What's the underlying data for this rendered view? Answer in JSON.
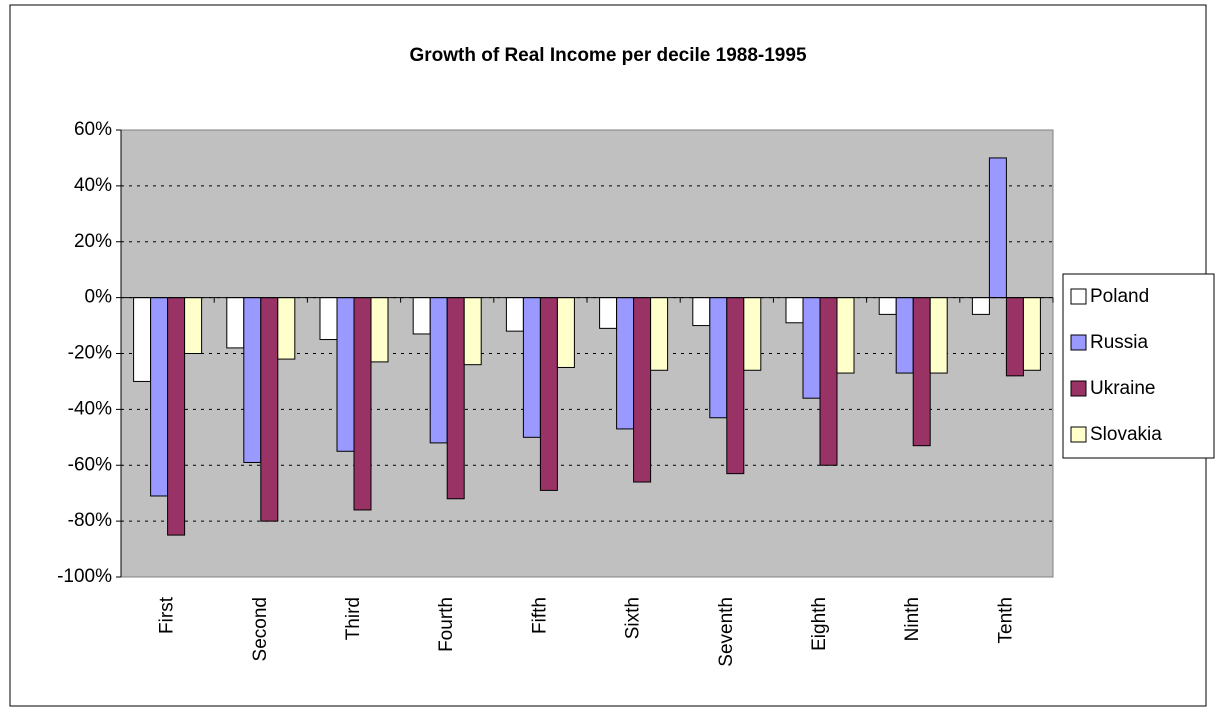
{
  "chart_data": {
    "type": "bar",
    "title": "Growth of Real Income  per decile 1988-1995",
    "categories": [
      "First",
      "Second",
      "Third",
      "Fourth",
      "Fifth",
      "Sixth",
      "Seventh",
      "Eighth",
      "Ninth",
      "Tenth"
    ],
    "series": [
      {
        "name": "Poland",
        "color": "#ffffff",
        "values": [
          -30,
          -18,
          -15,
          -13,
          -12,
          -11,
          -10,
          -9,
          -6,
          -6
        ]
      },
      {
        "name": "Russia",
        "color": "#9999ff",
        "values": [
          -71,
          -59,
          -55,
          -52,
          -50,
          -47,
          -43,
          -36,
          -27,
          50
        ]
      },
      {
        "name": "Ukraine",
        "color": "#993366",
        "values": [
          -85,
          -80,
          -76,
          -72,
          -69,
          -66,
          -63,
          -60,
          -53,
          -28
        ]
      },
      {
        "name": "Slovakia",
        "color": "#ffffcc",
        "values": [
          -20,
          -22,
          -23,
          -24,
          -25,
          -26,
          -26,
          -27,
          -27,
          -26
        ]
      }
    ],
    "ylim": [
      -100,
      60
    ],
    "yticks": [
      {
        "value": -100,
        "label": "-100%"
      },
      {
        "value": -80,
        "label": "-80%"
      },
      {
        "value": -60,
        "label": "-60%"
      },
      {
        "value": -40,
        "label": "-40%"
      },
      {
        "value": -20,
        "label": "-20%"
      },
      {
        "value": 0,
        "label": "0%"
      },
      {
        "value": 20,
        "label": "20%"
      },
      {
        "value": 40,
        "label": "40%"
      },
      {
        "value": 60,
        "label": "60%"
      }
    ],
    "grid": true,
    "plot_background": "#c0c0c0",
    "legend": "right"
  }
}
